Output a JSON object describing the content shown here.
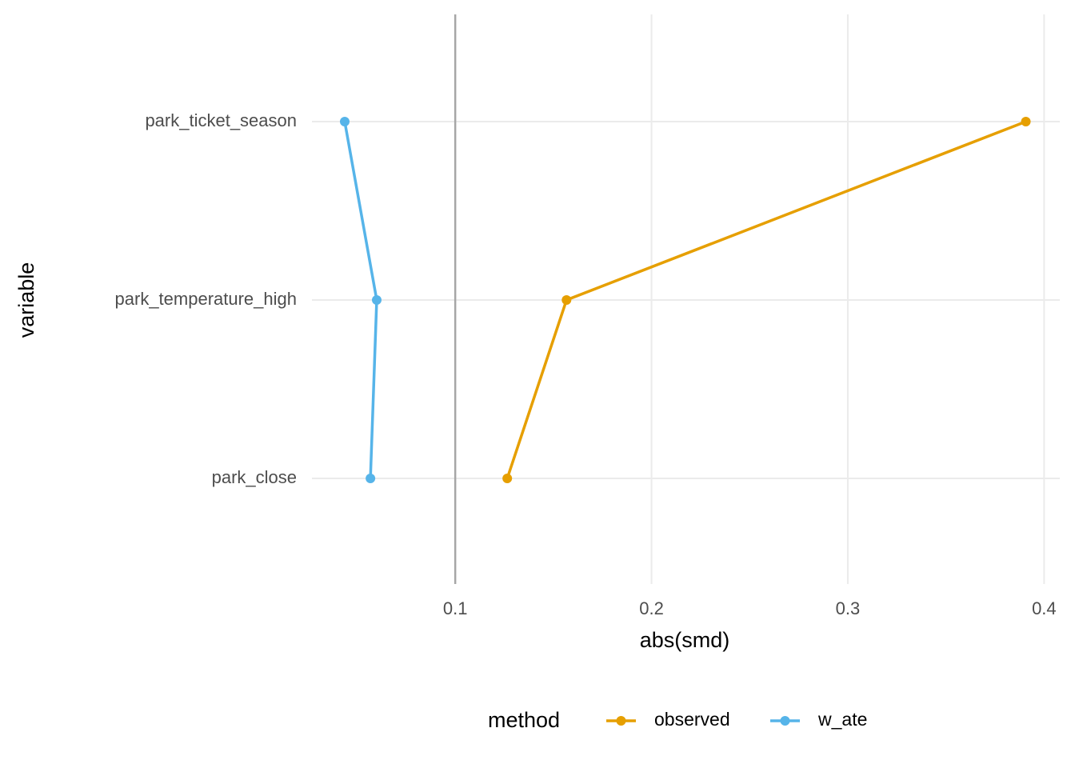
{
  "chart_data": {
    "type": "line",
    "orientation": "horizontal",
    "x_label": "abs(smd)",
    "y_label": "variable",
    "categories": [
      "park_close",
      "park_temperature_high",
      "park_ticket_season"
    ],
    "series": [
      {
        "name": "observed",
        "color": "#E69F00",
        "values": [
          0.1265,
          0.1567,
          0.3907
        ]
      },
      {
        "name": "w_ate",
        "color": "#56B4E9",
        "values": [
          0.0568,
          0.06,
          0.0437
        ]
      }
    ],
    "xlim": [
      0.027,
      0.408
    ],
    "xticks": [
      0.1,
      0.2,
      0.3,
      0.4
    ],
    "xintercept": 0.1,
    "grid": true,
    "legend_title": "method",
    "legend": "bottom"
  }
}
